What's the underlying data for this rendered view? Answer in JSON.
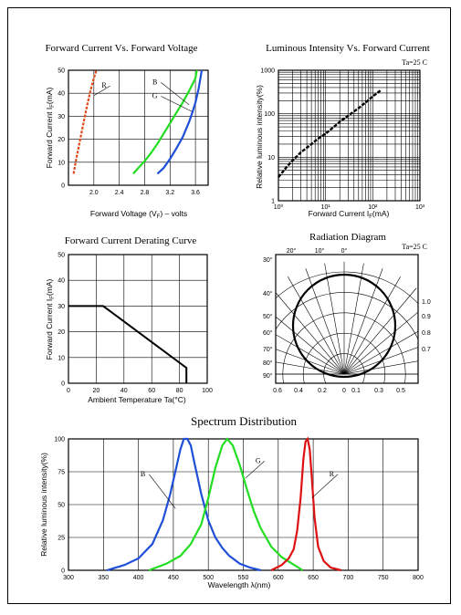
{
  "chart_data": [
    {
      "id": "fv",
      "type": "line",
      "title": "Forward Current Vs. Forward Voltage",
      "xlabel": "Forward Voltage (V",
      "xlabel_sub": "F",
      "xlabel_tail": ") – volts",
      "ylabel": "Forward Current I",
      "ylabel_sub": "F",
      "ylabel_tail": "(mA)",
      "xlim": [
        1.6,
        3.8
      ],
      "ylim": [
        0,
        50
      ],
      "xticks": [
        "2.0",
        "2.4",
        "2.8",
        "3.2",
        "3.6"
      ],
      "yticks": [
        "0",
        "10",
        "20",
        "30",
        "40",
        "50"
      ],
      "series": [
        {
          "name": "R",
          "color": "#e04a1a",
          "dashed": true,
          "x": [
            1.68,
            1.72,
            1.76,
            1.8,
            1.84,
            1.88,
            1.92,
            1.96,
            2.0,
            2.04
          ],
          "y": [
            5,
            11,
            16.5,
            22,
            27.5,
            33,
            38,
            42.5,
            46.5,
            50
          ]
        },
        {
          "name": "G",
          "color": "#22dd22",
          "dashed": false,
          "x": [
            2.62,
            2.7,
            2.8,
            2.9,
            3.0,
            3.1,
            3.2,
            3.3,
            3.4,
            3.5,
            3.6,
            3.62
          ],
          "y": [
            5,
            7.5,
            10.5,
            14,
            18,
            22.5,
            27,
            31.5,
            36,
            41,
            46.5,
            50
          ]
        },
        {
          "name": "B",
          "color": "#1f4fd8",
          "dashed": false,
          "x": [
            3.0,
            3.1,
            3.2,
            3.3,
            3.4,
            3.5,
            3.55,
            3.6,
            3.65,
            3.7
          ],
          "y": [
            5,
            7.5,
            11.5,
            16,
            21,
            27.5,
            31.5,
            36,
            42,
            50
          ]
        }
      ],
      "labels": [
        {
          "text": "R",
          "x": 2.2,
          "y": 42,
          "tx": 2.0,
          "ty": 39
        },
        {
          "text": "B",
          "x": 3.0,
          "y": 43.5,
          "tx": 3.5,
          "ty": 35
        },
        {
          "text": "G",
          "x": 3.0,
          "y": 37.5,
          "tx": 3.55,
          "ty": 32
        }
      ]
    },
    {
      "id": "li",
      "type": "line",
      "title": "Luminous Intensity Vs. Forward Current",
      "note": "Ta=25  C",
      "xlabel": "Forward Current I",
      "xlabel_sub": "F",
      "xlabel_tail": "(mA)",
      "ylabel": "Relative luminous intensity(%)",
      "xscale": "log",
      "yscale": "log",
      "xlim": [
        1,
        1000
      ],
      "ylim": [
        1,
        1000
      ],
      "xticks": [
        "10⁰",
        "10¹",
        "10²",
        "10³"
      ],
      "yticks": [
        "1",
        "10",
        "100",
        "1000"
      ],
      "series": [
        {
          "name": "",
          "color": "#000000",
          "dashed": false,
          "x": [
            1,
            1.5,
            2,
            3,
            5,
            7,
            10,
            15,
            20,
            30,
            50,
            70,
            100,
            150
          ],
          "y": [
            3.5,
            6,
            8.5,
            13,
            20,
            27,
            35,
            50,
            65,
            90,
            135,
            180,
            250,
            350
          ]
        }
      ]
    },
    {
      "id": "derate",
      "type": "line",
      "title": "Forward Current Derating Curve",
      "xlabel": "Ambient Temperature Ta(°C)",
      "ylabel": "Forward Current I",
      "ylabel_sub": "F",
      "ylabel_tail": "(mA)",
      "xlim": [
        0,
        100
      ],
      "ylim": [
        0,
        50
      ],
      "xticks": [
        "0",
        "20",
        "40",
        "60",
        "80",
        "100"
      ],
      "yticks": [
        "0",
        "10",
        "20",
        "30",
        "40",
        "50"
      ],
      "series": [
        {
          "name": "",
          "color": "#000000",
          "dashed": false,
          "x": [
            0,
            25,
            85,
            85
          ],
          "y": [
            30,
            30,
            6,
            0
          ]
        }
      ]
    },
    {
      "id": "radiation",
      "type": "polar",
      "title": "Radiation Diagram",
      "note": "Ta=25  C",
      "angle_labels": [
        "0°",
        "10°",
        "20°",
        "30°",
        "40°",
        "50°",
        "60°",
        "70°",
        "80°",
        "90°"
      ],
      "top_labels": [
        "20°",
        "10°",
        "0°"
      ],
      "right_labels": [
        "1.0",
        "0.9",
        "0.8",
        "0.7"
      ],
      "bottom_labels": [
        "0.6",
        "0.4",
        "0.2",
        "0",
        "0.1",
        "0.3",
        "0.5"
      ]
    },
    {
      "id": "spectrum",
      "type": "line",
      "title": "Spectrum Distribution",
      "xlabel": "Wavelength  λ(nm)",
      "ylabel": "Relative luminous intensity(%)",
      "xlim": [
        300,
        800
      ],
      "ylim": [
        0,
        100
      ],
      "xticks": [
        "300",
        "350",
        "400",
        "450",
        "500",
        "550",
        "600",
        "650",
        "700",
        "750",
        "800"
      ],
      "yticks": [
        "0",
        "25",
        "50",
        "75",
        "100"
      ],
      "series": [
        {
          "name": "B",
          "color": "#1f4fd8",
          "dashed": false,
          "x": [
            355,
            380,
            400,
            420,
            435,
            445,
            455,
            460,
            465,
            470,
            475,
            480,
            490,
            500,
            510,
            520,
            530,
            545,
            560,
            575
          ],
          "y": [
            0,
            4,
            9,
            20,
            38,
            57,
            80,
            92,
            100,
            100,
            95,
            82,
            58,
            38,
            25,
            17,
            11,
            5,
            2,
            0
          ]
        },
        {
          "name": "G",
          "color": "#22dd22",
          "dashed": false,
          "x": [
            415,
            440,
            460,
            475,
            490,
            500,
            510,
            520,
            527,
            535,
            545,
            555,
            565,
            575,
            590,
            605,
            620,
            635
          ],
          "y": [
            0,
            5,
            11,
            20,
            35,
            55,
            78,
            95,
            100,
            95,
            80,
            62,
            45,
            32,
            18,
            10,
            5,
            0
          ]
        },
        {
          "name": "R",
          "color": "#dd1111",
          "dashed": false,
          "x": [
            590,
            605,
            615,
            622,
            627,
            632,
            636,
            639,
            642,
            645,
            648,
            652,
            657,
            665,
            675,
            690
          ],
          "y": [
            0,
            4,
            9,
            16,
            30,
            55,
            85,
            98,
            100,
            92,
            70,
            40,
            18,
            7,
            2,
            0
          ]
        }
      ],
      "labels": [
        {
          "text": "B",
          "x": 410,
          "y": 71,
          "tx": 453,
          "ty": 47
        },
        {
          "text": "G",
          "x": 575,
          "y": 81,
          "tx": 553,
          "ty": 70
        },
        {
          "text": "R",
          "x": 680,
          "y": 71,
          "tx": 648,
          "ty": 55
        }
      ]
    }
  ]
}
